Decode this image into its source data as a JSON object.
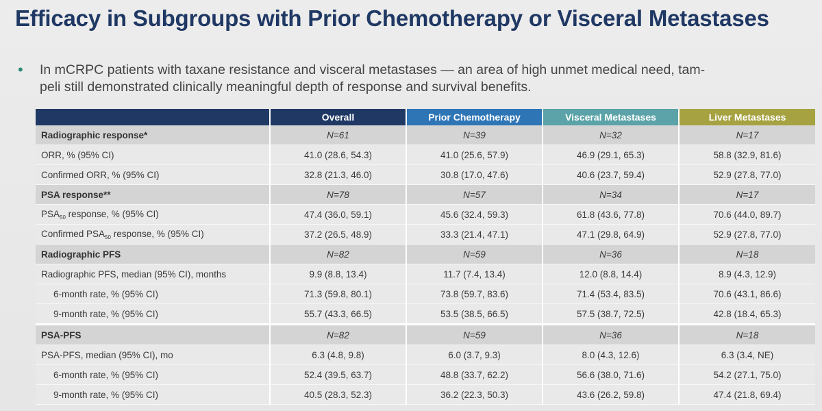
{
  "title": "Efficacy in Subgroups with Prior Chemotherapy or Visceral Metastases",
  "bullet": "In mCRPC patients with taxane resistance and visceral metastases — an area of high unmet medical need, tam-peli still demonstrated clinically meaningful depth of response and survival benefits.",
  "bullet_line1": "In mCRPC patients with taxane resistance and visceral metastases — an area of high unmet medical need, tam-",
  "bullet_line2": "peli still demonstrated clinically meaningful depth of response and survival benefits.",
  "colors": {
    "title": "#1f3864",
    "overall_header": "#1f3864",
    "prior_chemo_header": "#2e75b6",
    "visceral_header": "#5ba3a8",
    "liver_header": "#a6a241",
    "bullet": "#2e8b7a"
  },
  "table": {
    "headers": [
      "",
      "Overall",
      "Prior Chemotherapy",
      "Visceral Metastases",
      "Liver Metastases"
    ],
    "rows": {
      "radiographic_response": {
        "label": "Radiographic response*",
        "values": [
          "N=61",
          "N=39",
          "N=32",
          "N=17"
        ]
      },
      "orr": {
        "label": "ORR, % (95% CI)",
        "values": [
          "41.0 (28.6, 54.3)",
          "41.0 (25.6, 57.9)",
          "46.9 (29.1, 65.3)",
          "58.8 (32.9, 81.6)"
        ]
      },
      "confirmed_orr": {
        "label": "Confirmed ORR, % (95% CI)",
        "values": [
          "32.8 (21.3, 46.0)",
          "30.8 (17.0, 47.6)",
          "40.6 (23.7, 59.4)",
          "52.9 (27.8, 77.0)"
        ]
      },
      "psa_response": {
        "label": "PSA response**",
        "values": [
          "N=78",
          "N=57",
          "N=34",
          "N=17"
        ]
      },
      "psa50": {
        "label_pre": "PSA",
        "label_sub": "50",
        "label_post": " response, % (95% CI)",
        "values": [
          "47.4 (36.0, 59.1)",
          "45.6 (32.4, 59.3)",
          "61.8 (43.6, 77.8)",
          "70.6 (44.0, 89.7)"
        ]
      },
      "confirmed_psa50": {
        "label_pre": "Confirmed PSA",
        "label_sub": "50",
        "label_post": " response, % (95% CI)",
        "values": [
          "37.2 (26.5, 48.9)",
          "33.3 (21.4, 47.1)",
          "47.1 (29.8, 64.9)",
          "52.9 (27.8, 77.0)"
        ]
      },
      "rpfs": {
        "label": "Radiographic PFS",
        "values": [
          "N=82",
          "N=59",
          "N=36",
          "N=18"
        ]
      },
      "rpfs_median": {
        "label": "Radiographic PFS, median (95% CI), months",
        "values": [
          "9.9 (8.8, 13.4)",
          "11.7 (7.4, 13.4)",
          "12.0 (8.8, 14.4)",
          "8.9 (4.3, 12.9)"
        ]
      },
      "rpfs_6m": {
        "label": "6-month rate, % (95% CI)",
        "values": [
          "71.3 (59.8, 80.1)",
          "73.8 (59.7, 83.6)",
          "71.4 (53.4, 83.5)",
          "70.6 (43.1, 86.6)"
        ]
      },
      "rpfs_9m": {
        "label": "9-month rate, % (95% CI)",
        "values": [
          "55.7 (43.3, 66.5)",
          "53.5 (38.5, 66.5)",
          "57.5 (38.7, 72.5)",
          "42.8 (18.4, 65.3)"
        ]
      },
      "psa_pfs": {
        "label": "PSA-PFS",
        "values": [
          "N=82",
          "N=59",
          "N=36",
          "N=18"
        ]
      },
      "psa_pfs_median": {
        "label": "PSA-PFS, median (95% CI), mo",
        "values": [
          "6.3 (4.8, 9.8)",
          "6.0 (3.7, 9.3)",
          "8.0 (4.3, 12.6)",
          "6.3 (3.4, NE)"
        ]
      },
      "psa_pfs_6m": {
        "label": "6-month rate, % (95% CI)",
        "values": [
          "52.4 (39.5, 63.7)",
          "48.8 (33.7, 62.2)",
          "56.6 (38.0, 71.6)",
          "54.2 (27.1, 75.0)"
        ]
      },
      "psa_pfs_9m": {
        "label": "9-month rate, % (95% CI)",
        "values": [
          "40.5 (28.3, 52.3)",
          "36.2 (22.3, 50.3)",
          "43.6 (26.2, 59.8)",
          "47.4 (21.8, 69.4)"
        ]
      }
    }
  }
}
